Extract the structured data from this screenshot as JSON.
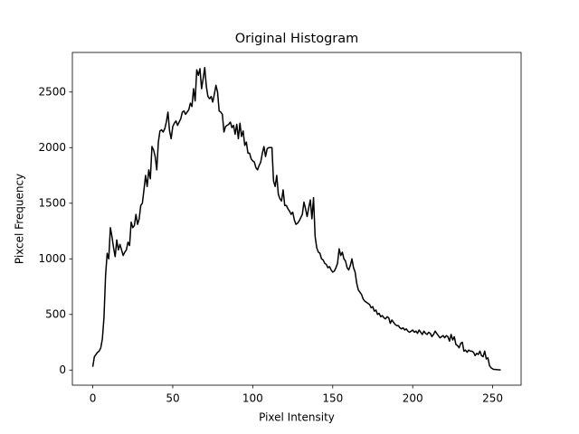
{
  "chart_data": {
    "type": "line",
    "title": "Original Histogram",
    "x_label": "Pixel Intensity",
    "y_label": "Pixcel Frequency",
    "x": [
      0,
      1,
      2,
      3,
      4,
      5,
      6,
      7,
      8,
      9,
      10,
      11,
      12,
      13,
      14,
      15,
      16,
      17,
      18,
      19,
      20,
      21,
      22,
      23,
      24,
      25,
      26,
      27,
      28,
      29,
      30,
      31,
      32,
      33,
      34,
      35,
      36,
      37,
      38,
      39,
      40,
      41,
      42,
      43,
      44,
      45,
      46,
      47,
      48,
      49,
      50,
      51,
      52,
      53,
      54,
      55,
      56,
      57,
      58,
      59,
      60,
      61,
      62,
      63,
      64,
      65,
      66,
      67,
      68,
      69,
      70,
      71,
      72,
      73,
      74,
      75,
      76,
      77,
      78,
      79,
      80,
      81,
      82,
      83,
      84,
      85,
      86,
      87,
      88,
      89,
      90,
      91,
      92,
      93,
      94,
      95,
      96,
      97,
      98,
      99,
      100,
      101,
      102,
      103,
      104,
      105,
      106,
      107,
      108,
      109,
      110,
      111,
      112,
      113,
      114,
      115,
      116,
      117,
      118,
      119,
      120,
      121,
      122,
      123,
      124,
      125,
      126,
      127,
      128,
      129,
      130,
      131,
      132,
      133,
      134,
      135,
      136,
      137,
      138,
      139,
      140,
      141,
      142,
      143,
      144,
      145,
      146,
      147,
      148,
      149,
      150,
      151,
      152,
      153,
      154,
      155,
      156,
      157,
      158,
      159,
      160,
      161,
      162,
      163,
      164,
      165,
      166,
      167,
      168,
      169,
      170,
      171,
      172,
      173,
      174,
      175,
      176,
      177,
      178,
      179,
      180,
      181,
      182,
      183,
      184,
      185,
      186,
      187,
      188,
      189,
      190,
      191,
      192,
      193,
      194,
      195,
      196,
      197,
      198,
      199,
      200,
      201,
      202,
      203,
      204,
      205,
      206,
      207,
      208,
      209,
      210,
      211,
      212,
      213,
      214,
      215,
      216,
      217,
      218,
      219,
      220,
      221,
      222,
      223,
      224,
      225,
      226,
      227,
      228,
      229,
      230,
      231,
      232,
      233,
      234,
      235,
      236,
      237,
      238,
      239,
      240,
      241,
      242,
      243,
      244,
      245,
      246,
      247,
      248,
      249,
      250,
      251,
      252,
      253,
      254,
      255
    ],
    "series": [
      {
        "color": "#000000",
        "values": [
          30,
          120,
          140,
          160,
          170,
          200,
          280,
          470,
          850,
          1050,
          1000,
          1280,
          1200,
          1100,
          1020,
          1170,
          1080,
          1130,
          1080,
          1030,
          1060,
          1080,
          1150,
          1120,
          1330,
          1280,
          1300,
          1400,
          1310,
          1360,
          1480,
          1500,
          1620,
          1750,
          1650,
          1800,
          1720,
          2010,
          1980,
          1920,
          1800,
          2050,
          2150,
          2160,
          2140,
          2170,
          2230,
          2320,
          2150,
          2080,
          2190,
          2220,
          2240,
          2200,
          2230,
          2260,
          2320,
          2330,
          2300,
          2320,
          2340,
          2400,
          2370,
          2530,
          2420,
          2700,
          2650,
          2710,
          2530,
          2620,
          2720,
          2550,
          2460,
          2440,
          2460,
          2410,
          2480,
          2560,
          2500,
          2330,
          2320,
          2300,
          2140,
          2190,
          2200,
          2210,
          2230,
          2180,
          2200,
          2120,
          2210,
          2080,
          2220,
          2100,
          2150,
          2020,
          2050,
          1950,
          1950,
          1900,
          1880,
          1870,
          1820,
          1800,
          1840,
          1870,
          1950,
          2010,
          1920,
          1990,
          2000,
          2000,
          2000,
          1700,
          1650,
          1750,
          1580,
          1540,
          1520,
          1620,
          1480,
          1480,
          1450,
          1430,
          1400,
          1420,
          1350,
          1310,
          1320,
          1340,
          1370,
          1400,
          1510,
          1450,
          1380,
          1460,
          1530,
          1360,
          1550,
          1200,
          1100,
          1060,
          1050,
          1000,
          990,
          960,
          950,
          920,
          930,
          900,
          880,
          890,
          920,
          960,
          1090,
          1030,
          1060,
          1000,
          980,
          920,
          900,
          940,
          1000,
          920,
          880,
          780,
          720,
          700,
          680,
          640,
          620,
          610,
          600,
          590,
          560,
          570,
          530,
          540,
          500,
          510,
          480,
          490,
          470,
          460,
          480,
          470,
          420,
          450,
          430,
          410,
          400,
          400,
          380,
          370,
          380,
          360,
          370,
          350,
          340,
          350,
          360,
          340,
          350,
          330,
          360,
          340,
          320,
          350,
          330,
          320,
          340,
          330,
          300,
          320,
          350,
          330,
          310,
          290,
          300,
          310,
          290,
          310,
          300,
          260,
          320,
          270,
          300,
          230,
          220,
          200,
          240,
          250,
          170,
          180,
          160,
          180,
          170,
          170,
          160,
          130,
          150,
          140,
          170,
          130,
          120,
          170,
          100,
          110,
          40,
          20,
          10,
          5,
          5,
          3,
          2,
          1
        ]
      }
    ],
    "xlim": [
      -12.75,
      267.75
    ],
    "ylim": [
      -136,
      2856
    ],
    "xticks": [
      0,
      50,
      100,
      150,
      200,
      250
    ],
    "yticks": [
      0,
      500,
      1000,
      1500,
      2000,
      2500
    ]
  }
}
